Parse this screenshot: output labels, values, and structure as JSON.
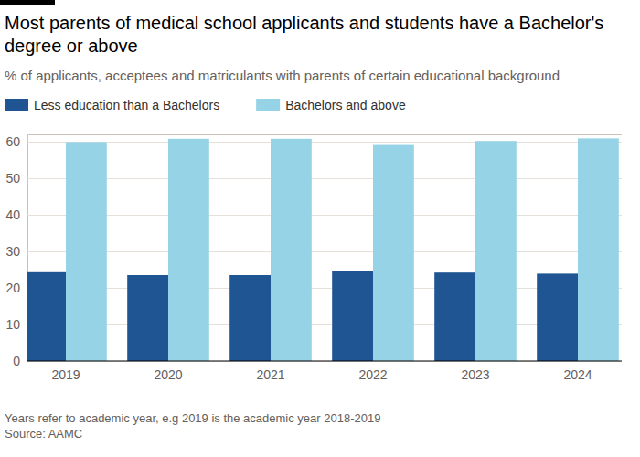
{
  "chart_data": {
    "type": "bar",
    "title": "Most parents of medical school applicants and students have a Bachelor's degree or above",
    "subtitle": "% of applicants, acceptees and matriculants with parents of certain educational background",
    "categories": [
      "2019",
      "2020",
      "2021",
      "2022",
      "2023",
      "2024"
    ],
    "series": [
      {
        "name": "Less education than a Bachelors",
        "color": "#1f5592",
        "values": [
          24.3,
          23.5,
          23.5,
          24.5,
          24.2,
          23.9
        ]
      },
      {
        "name": "Bachelors and above",
        "color": "#96d3e6",
        "values": [
          59.9,
          60.8,
          60.8,
          59.1,
          60.2,
          60.9
        ]
      }
    ],
    "ylim": [
      0,
      62
    ],
    "yticks": [
      0,
      10,
      20,
      30,
      40,
      50,
      60
    ],
    "grid": true,
    "legend": "top-left",
    "annotations": [
      "Years refer to academic year, e.g 2019 is the academic year 2018-2019",
      "Source: AAMC"
    ]
  }
}
